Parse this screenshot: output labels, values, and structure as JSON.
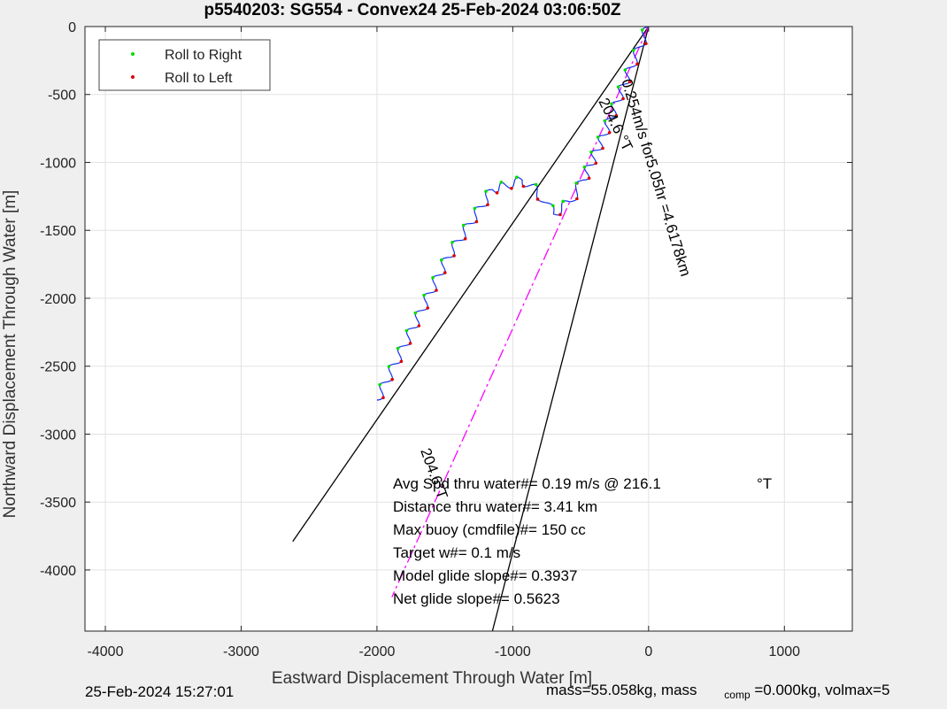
{
  "chart_data": {
    "type": "scatter",
    "title": "p5540203: SG554 - Convex24 25-Feb-2024 03:06:50Z",
    "xlabel": "Eastward Displacement Through Water [m]",
    "ylabel": "Northward Displacement Through Water [m]",
    "xlim": [
      -4150,
      1500
    ],
    "ylim": [
      -4450,
      0
    ],
    "xticks": [
      -4000,
      -3000,
      -2000,
      -1000,
      0,
      1000
    ],
    "yticks": [
      0,
      -500,
      -1000,
      -1500,
      -2000,
      -2500,
      -3000,
      -3500,
      -4000
    ],
    "grid": true,
    "legend": {
      "position": "top-left",
      "entries": [
        {
          "label": "Roll to Right",
          "color": "#00dd00"
        },
        {
          "label": "Roll to Left",
          "color": "#dd0000"
        }
      ]
    },
    "track_waypoints": [
      {
        "x": 0,
        "y": 0
      },
      {
        "x": -130,
        "y": -300
      },
      {
        "x": -330,
        "y": -800
      },
      {
        "x": -480,
        "y": -1130
      },
      {
        "x": -580,
        "y": -1290
      },
      {
        "x": -700,
        "y": -1380
      },
      {
        "x": -820,
        "y": -1210
      },
      {
        "x": -930,
        "y": -1130
      },
      {
        "x": -1050,
        "y": -1170
      },
      {
        "x": -1150,
        "y": -1200
      },
      {
        "x": -1480,
        "y": -1700
      },
      {
        "x": -1800,
        "y": -2350
      },
      {
        "x": -2000,
        "y": -2750
      }
    ],
    "lines": [
      {
        "name": "heading-line-1",
        "color": "#000000",
        "from": [
          0,
          0
        ],
        "to": [
          -2620,
          -3790
        ]
      },
      {
        "name": "heading-line-2",
        "color": "#000000",
        "from": [
          0,
          0
        ],
        "to": [
          -1150,
          -4450
        ]
      },
      {
        "name": "target-line",
        "color": "#ff00ff",
        "from": [
          0,
          0
        ],
        "to": [
          -1890,
          -4200
        ]
      }
    ],
    "rotated_labels": [
      {
        "text": "204.6 °T",
        "x": -370,
        "y": -550,
        "angle_deg": 63
      },
      {
        "text": "0.254m/s for5.05hr =4.6178km",
        "x": -200,
        "y": -400,
        "angle_deg": 73
      },
      {
        "text": "204.6°T",
        "x": -1680,
        "y": -3120,
        "angle_deg": 70
      }
    ],
    "annotations": [
      {
        "label": "Avg Spd thru water#=  0.19 m/s @ 216.1",
        "suffix": "°T"
      },
      {
        "label": "Distance thru water#=  3.41 km"
      },
      {
        "label": "Max buoy (cmdfile)#= 150 cc"
      },
      {
        "label": "Target w#= 0.1 m/s"
      },
      {
        "label": "Model glide slope#= 0.3937"
      },
      {
        "label": "Net glide slope#= 0.5623"
      }
    ]
  },
  "footer": {
    "timestamp": "25-Feb-2024 15:27:01",
    "mass_text": "mass=55.058kg, mass",
    "mass_sub": "comp",
    "mass_tail": " =0.000kg, volmax=5"
  }
}
